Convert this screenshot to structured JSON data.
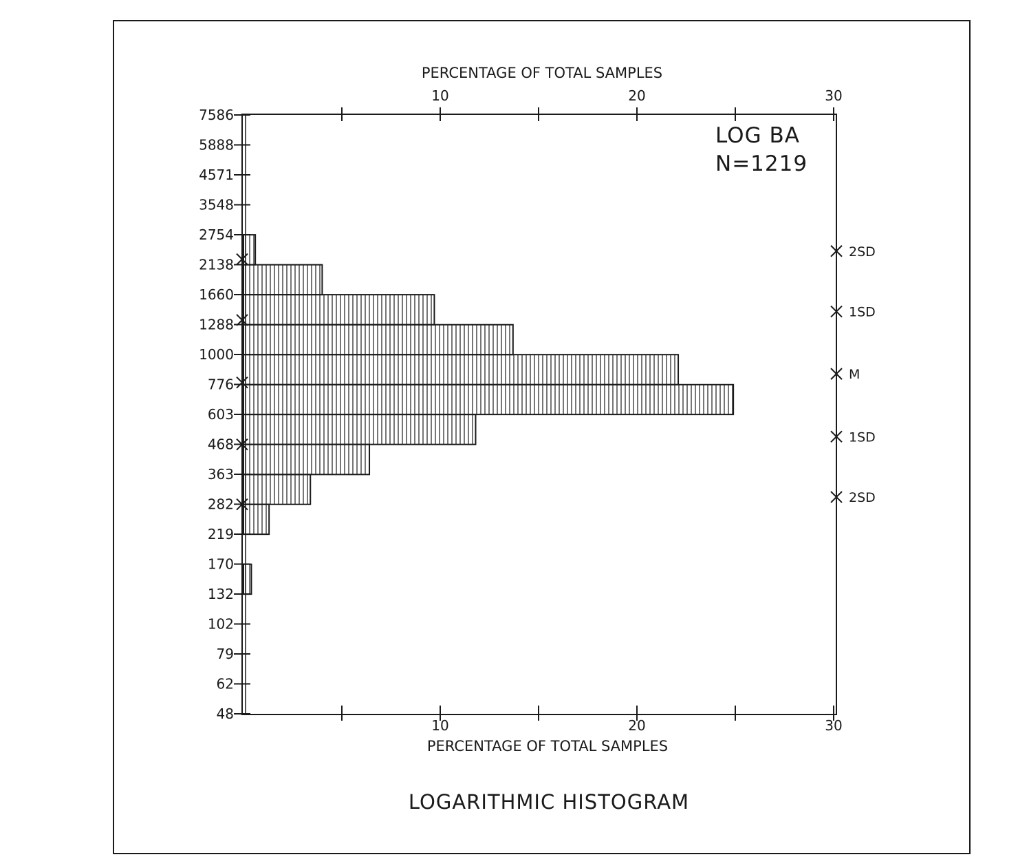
{
  "chart_data": {
    "type": "bar",
    "orientation": "horizontal",
    "title": "LOGARITHMIC HISTOGRAM",
    "xlabel_top": "PERCENTAGE OF TOTAL SAMPLES",
    "xlabel_bottom": "PERCENTAGE OF TOTAL SAMPLES",
    "xlim": [
      0,
      30
    ],
    "x_major_ticks": [
      5,
      10,
      15,
      20,
      25,
      30
    ],
    "x_tick_labels": [
      "10",
      "20",
      "30"
    ],
    "x_tick_label_values": [
      10,
      20,
      30
    ],
    "y_tick_labels": [
      "7586",
      "5888",
      "4571",
      "3548",
      "2754",
      "2138",
      "1660",
      "1288",
      "1000",
      "776",
      "603",
      "468",
      "363",
      "282",
      "219",
      "170",
      "132",
      "102",
      "79",
      "62",
      "48"
    ],
    "annotation": [
      "LOG BA",
      "N=1219"
    ],
    "bins": [
      {
        "low": "2138",
        "high": "2754",
        "value": 0.6
      },
      {
        "low": "1660",
        "high": "2138",
        "value": 4.0
      },
      {
        "low": "1288",
        "high": "1660",
        "value": 9.7
      },
      {
        "low": "1000",
        "high": "1288",
        "value": 13.7
      },
      {
        "low": "776",
        "high": "1000",
        "value": 22.1
      },
      {
        "low": "603",
        "high": "776",
        "value": 24.9
      },
      {
        "low": "468",
        "high": "603",
        "value": 11.8
      },
      {
        "low": "363",
        "high": "468",
        "value": 6.4
      },
      {
        "low": "282",
        "high": "363",
        "value": 3.4
      },
      {
        "low": "219",
        "high": "282",
        "value": 1.3
      },
      {
        "low": "132",
        "high": "170",
        "value": 0.4
      }
    ],
    "statistics_markers": [
      {
        "label": "2SD",
        "value": 2400
      },
      {
        "label": "1SD",
        "value": 1440
      },
      {
        "label": "M",
        "value": 850
      },
      {
        "label": "1SD",
        "value": 500
      },
      {
        "label": "2SD",
        "value": 300
      }
    ],
    "left_axis_markers": [
      2240,
      1340,
      790,
      468,
      282
    ],
    "grid": false,
    "legend": "none",
    "fill": "vertical hatching",
    "colors": {
      "ink": "#1a1a1a",
      "background": "#ffffff"
    }
  }
}
